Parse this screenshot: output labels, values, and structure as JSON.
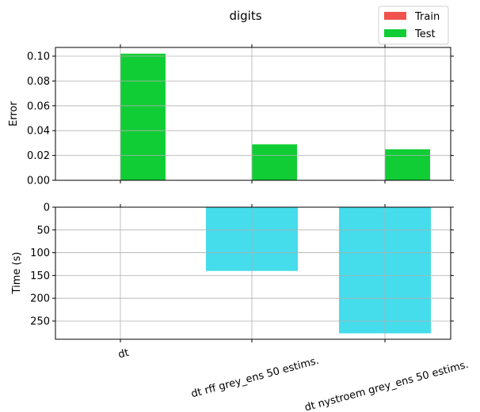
{
  "chart_data": [
    {
      "type": "bar",
      "title": "digits",
      "ylabel": "Error",
      "categories": [
        "dt",
        "dt rff grey_ens 50 estims.",
        "dt nystroem grey_ens 50 estims."
      ],
      "series": [
        {
          "name": "Train",
          "values": [
            0,
            0,
            0
          ],
          "color": "#f0524d"
        },
        {
          "name": "Test",
          "values": [
            0.102,
            0.029,
            0.025
          ],
          "color": "#11cd35"
        }
      ],
      "ylim": [
        0,
        0.107
      ],
      "yticks": [
        "0.00",
        "0.02",
        "0.04",
        "0.06",
        "0.08",
        "0.10"
      ],
      "ytick_values": [
        0,
        0.02,
        0.04,
        0.06,
        0.08,
        0.1
      ],
      "grid": true,
      "legend": "top-right"
    },
    {
      "type": "bar",
      "ylabel": "Time (s)",
      "categories": [
        "dt",
        "dt rff grey_ens 50 estims.",
        "dt nystroem grey_ens 50 estims."
      ],
      "series": [
        {
          "values": [
            0,
            140,
            277
          ],
          "color": "#45dcec"
        }
      ],
      "ylim": [
        0,
        290
      ],
      "y_inverted": true,
      "yticks": [
        "0",
        "50",
        "100",
        "150",
        "200",
        "250"
      ],
      "ytick_values": [
        0,
        50,
        100,
        150,
        200,
        250
      ],
      "grid": true
    }
  ]
}
